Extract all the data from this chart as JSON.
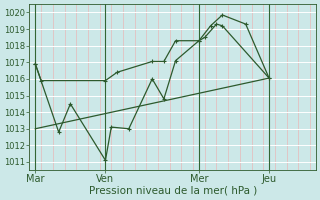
{
  "background_color": "#cce8e8",
  "grid_color_h": "#ffffff",
  "grid_color_v_minor": "#e8b8b8",
  "grid_color_v_major": "#336633",
  "line_color": "#2d5a2d",
  "xlabel": "Pression niveau de la mer( hPa )",
  "ylim": [
    1010.5,
    1020.5
  ],
  "yticks": [
    1011,
    1012,
    1013,
    1014,
    1015,
    1016,
    1017,
    1018,
    1019,
    1020
  ],
  "day_positions": [
    0,
    24,
    56,
    80
  ],
  "xtick_labels": [
    "Mar",
    "Ven",
    "Mer",
    "Jeu"
  ],
  "xlim": [
    -2,
    96
  ],
  "series1_x": [
    0,
    2,
    24,
    28,
    40,
    44,
    48,
    56,
    58,
    62,
    64,
    80
  ],
  "series1_y": [
    1016.9,
    1015.9,
    1015.9,
    1016.4,
    1017.05,
    1017.05,
    1018.3,
    1018.3,
    1018.5,
    1019.3,
    1019.2,
    1016.05
  ],
  "series2_x": [
    0,
    8,
    12,
    24,
    26,
    32,
    40,
    44,
    48,
    56,
    60,
    64,
    72,
    80
  ],
  "series2_y": [
    1016.9,
    1012.8,
    1014.5,
    1011.1,
    1013.1,
    1013.0,
    1016.0,
    1014.8,
    1017.1,
    1018.3,
    1019.2,
    1019.85,
    1019.3,
    1016.05
  ],
  "series3_x": [
    0,
    80
  ],
  "series3_y": [
    1013.0,
    1016.05
  ]
}
